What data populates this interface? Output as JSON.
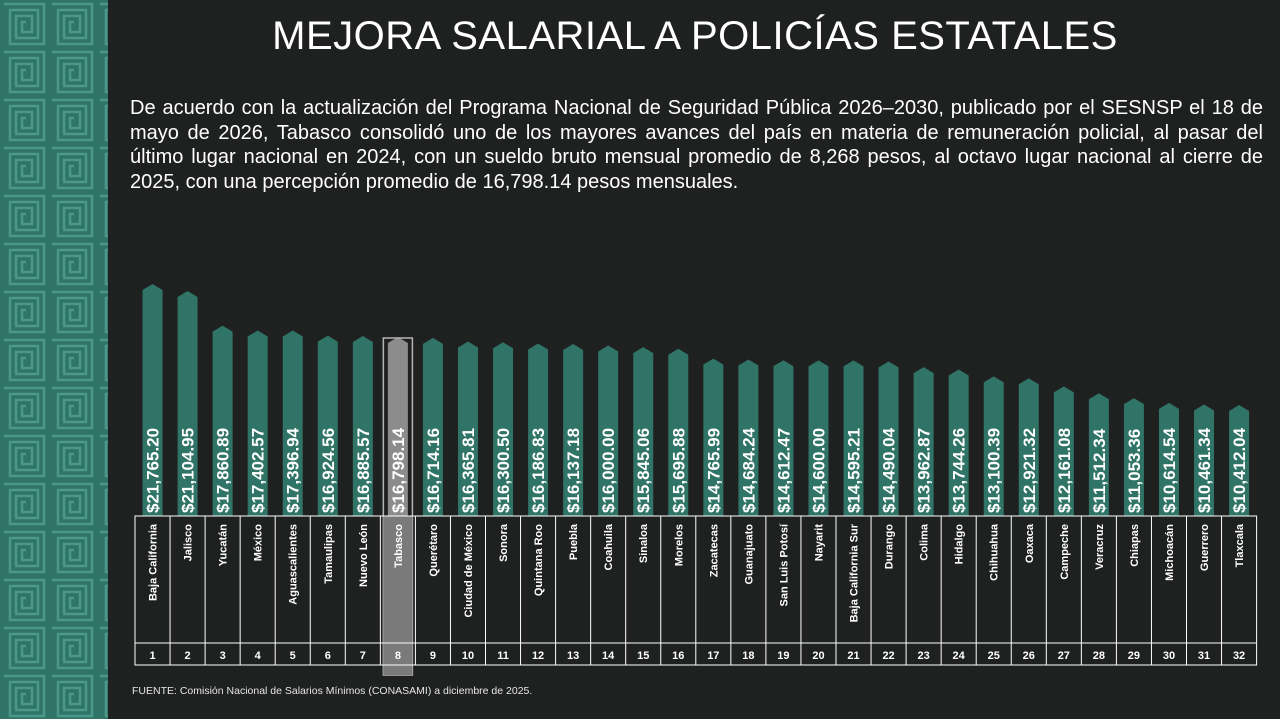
{
  "title": "MEJORA SALARIAL A POLICÍAS ESTATALES",
  "intro": "De acuerdo con la actualización del Programa Nacional de Seguridad Pública 2026–2030, publicado por el SESNSP el 18 de mayo de 2026, Tabasco consolidó uno de los mayores avances del país en materia de remuneración policial, al pasar del último lugar nacional en 2024, con un sueldo bruto mensual promedio de 8,268 pesos, al octavo lugar nacional al cierre de 2025, con una percepción promedio de 16,798.14 pesos mensuales.",
  "source": "FUENTE: Comisión Nacional de Salarios Mínimos (CONASAMI)  a diciembre de 2025.",
  "colors": {
    "background": "#1f2020",
    "bar": "#2f7466",
    "highlight_bar": "#8c8c8c",
    "pattern_bg": "#2f7466",
    "pattern_line": "#3f8a7b"
  },
  "chart_data": {
    "type": "bar",
    "highlight_category": "Tabasco",
    "categories": [
      "Baja California",
      "Jalisco",
      "Yucatán",
      "México",
      "Aguascalientes",
      "Tamaulipas",
      "Nuevo León",
      "Tabasco",
      "Querétaro",
      "Ciudad de México",
      "Sonora",
      "Quintana Roo",
      "Puebla",
      "Coahuila",
      "Sinaloa",
      "Morelos",
      "Zacatecas",
      "Guanajuato",
      "San Luis Potosí",
      "Nayarit",
      "Baja California Sur",
      "Durango",
      "Colima",
      "Hidalgo",
      "Chihuahua",
      "Oaxaca",
      "Campeche",
      "Veracruz",
      "Chiapas",
      "Michoacán",
      "Guerrero",
      "Tlaxcala"
    ],
    "ranks": [
      "1",
      "2",
      "3",
      "4",
      "5",
      "6",
      "7",
      "8",
      "9",
      "10",
      "11",
      "12",
      "13",
      "14",
      "15",
      "16",
      "17",
      "18",
      "19",
      "20",
      "21",
      "22",
      "23",
      "24",
      "25",
      "26",
      "27",
      "28",
      "29",
      "30",
      "31",
      "32"
    ],
    "values": [
      21765.2,
      21104.95,
      17860.89,
      17402.57,
      17396.94,
      16924.56,
      16885.57,
      16798.14,
      16714.16,
      16365.81,
      16300.5,
      16186.83,
      16137.18,
      16000.0,
      15845.06,
      15695.88,
      14765.99,
      14684.24,
      14612.47,
      14600.0,
      14595.21,
      14490.04,
      13962.87,
      13744.26,
      13100.39,
      12921.32,
      12161.08,
      11512.34,
      11053.36,
      10614.54,
      10461.34,
      10412.04
    ],
    "labels": [
      "$21,765.20",
      "$21,104.95",
      "$17,860.89",
      "$17,402.57",
      "$17,396.94",
      "$16,924.56",
      "$16,885.57",
      "$16,798.14",
      "$16,714.16",
      "$16,365.81",
      "$16,300.50",
      "$16,186.83",
      "$16,137.18",
      "$16,000.00",
      "$15,845.06",
      "$15,695.88",
      "$14,765.99",
      "$14,684.24",
      "$14,612.47",
      "$14,600.00",
      "$14,595.21",
      "$14,490.04",
      "$13,962.87",
      "$13,744.26",
      "$13,100.39",
      "$12,921.32",
      "$12,161.08",
      "$11,512.34",
      "$11,053.36",
      "$10,614.54",
      "$10,461.34",
      "$10,412.04"
    ]
  }
}
